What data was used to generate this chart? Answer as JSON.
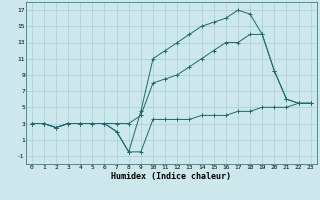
{
  "title": "",
  "xlabel": "Humidex (Indice chaleur)",
  "bg_color": "#cce8ec",
  "line_color": "#1a6b6e",
  "grid_color": "#aacdd4",
  "xlim": [
    -0.5,
    23.5
  ],
  "ylim": [
    -2,
    18
  ],
  "xticks": [
    0,
    1,
    2,
    3,
    4,
    5,
    6,
    7,
    8,
    9,
    10,
    11,
    12,
    13,
    14,
    15,
    16,
    17,
    18,
    19,
    20,
    21,
    22,
    23
  ],
  "yticks": [
    -1,
    1,
    3,
    5,
    7,
    9,
    11,
    13,
    15,
    17
  ],
  "line1_x": [
    0,
    1,
    2,
    3,
    4,
    5,
    6,
    7,
    8,
    9,
    10,
    11,
    12,
    13,
    14,
    15,
    16,
    17,
    18,
    19,
    20,
    21,
    22,
    23
  ],
  "line1_y": [
    3,
    3,
    2.5,
    3,
    3,
    3,
    3,
    2,
    -0.5,
    -0.5,
    3.5,
    3.5,
    3.5,
    3.5,
    4,
    4,
    4,
    4.5,
    4.5,
    5,
    5,
    5,
    5.5,
    5.5
  ],
  "line2_x": [
    0,
    1,
    2,
    3,
    4,
    5,
    6,
    7,
    8,
    9,
    10,
    11,
    12,
    13,
    14,
    15,
    16,
    17,
    18,
    19,
    20,
    21,
    22,
    23
  ],
  "line2_y": [
    3,
    3,
    2.5,
    3,
    3,
    3,
    3,
    2,
    -0.5,
    4.5,
    11,
    12,
    13,
    14,
    15,
    15.5,
    16,
    17,
    16.5,
    14,
    9.5,
    6,
    5.5,
    5.5
  ],
  "line3_x": [
    0,
    1,
    2,
    3,
    4,
    5,
    6,
    7,
    8,
    9,
    10,
    11,
    12,
    13,
    14,
    15,
    16,
    17,
    18,
    19,
    20,
    21,
    22,
    23
  ],
  "line3_y": [
    3,
    3,
    2.5,
    3,
    3,
    3,
    3,
    3,
    3,
    4,
    8,
    8.5,
    9,
    10,
    11,
    12,
    13,
    13,
    14,
    14,
    9.5,
    6,
    5.5,
    5.5
  ],
  "xlabel_fontsize": 6,
  "tick_fontsize": 4.5,
  "linewidth": 0.7,
  "markersize": 2.5
}
